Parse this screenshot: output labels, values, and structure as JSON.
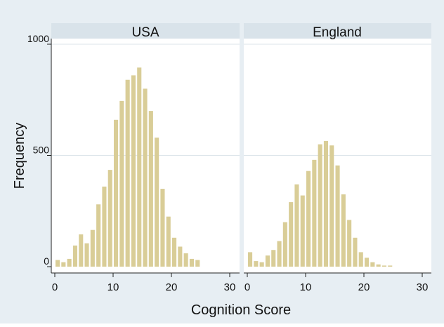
{
  "chart_data": {
    "type": "bar",
    "ylabel": "Frequency",
    "xlabel": "Cognition Score",
    "xlim": [
      0,
      30
    ],
    "ylim": [
      0,
      1000
    ],
    "xticks": [
      0,
      10,
      20,
      30
    ],
    "yticks": [
      0,
      500,
      1000
    ],
    "xtick_labels": [
      "0",
      "10",
      "20",
      "30"
    ],
    "ytick_labels": [
      "0",
      "500",
      "1000"
    ],
    "grid": true,
    "bar_color": "#d9cd97",
    "panel_header_color": "#d9e3ea",
    "background_color": "#e7eef3",
    "panels": [
      {
        "title": "USA",
        "x": [
          0,
          1,
          2,
          3,
          4,
          5,
          6,
          7,
          8,
          9,
          10,
          11,
          12,
          13,
          14,
          15,
          16,
          17,
          18,
          19,
          20,
          21,
          22,
          23,
          24
        ],
        "values": [
          30,
          20,
          35,
          95,
          145,
          105,
          165,
          280,
          360,
          435,
          660,
          745,
          840,
          860,
          895,
          800,
          700,
          580,
          350,
          225,
          130,
          90,
          60,
          35,
          30
        ]
      },
      {
        "title": "England",
        "x": [
          0,
          1,
          2,
          3,
          4,
          5,
          6,
          7,
          8,
          9,
          10,
          11,
          12,
          13,
          14,
          15,
          16,
          17,
          18,
          19,
          20,
          21,
          22,
          23,
          24
        ],
        "values": [
          65,
          25,
          20,
          50,
          75,
          115,
          200,
          290,
          370,
          320,
          430,
          480,
          550,
          565,
          545,
          455,
          325,
          210,
          130,
          65,
          40,
          20,
          10,
          5,
          5
        ]
      }
    ]
  }
}
